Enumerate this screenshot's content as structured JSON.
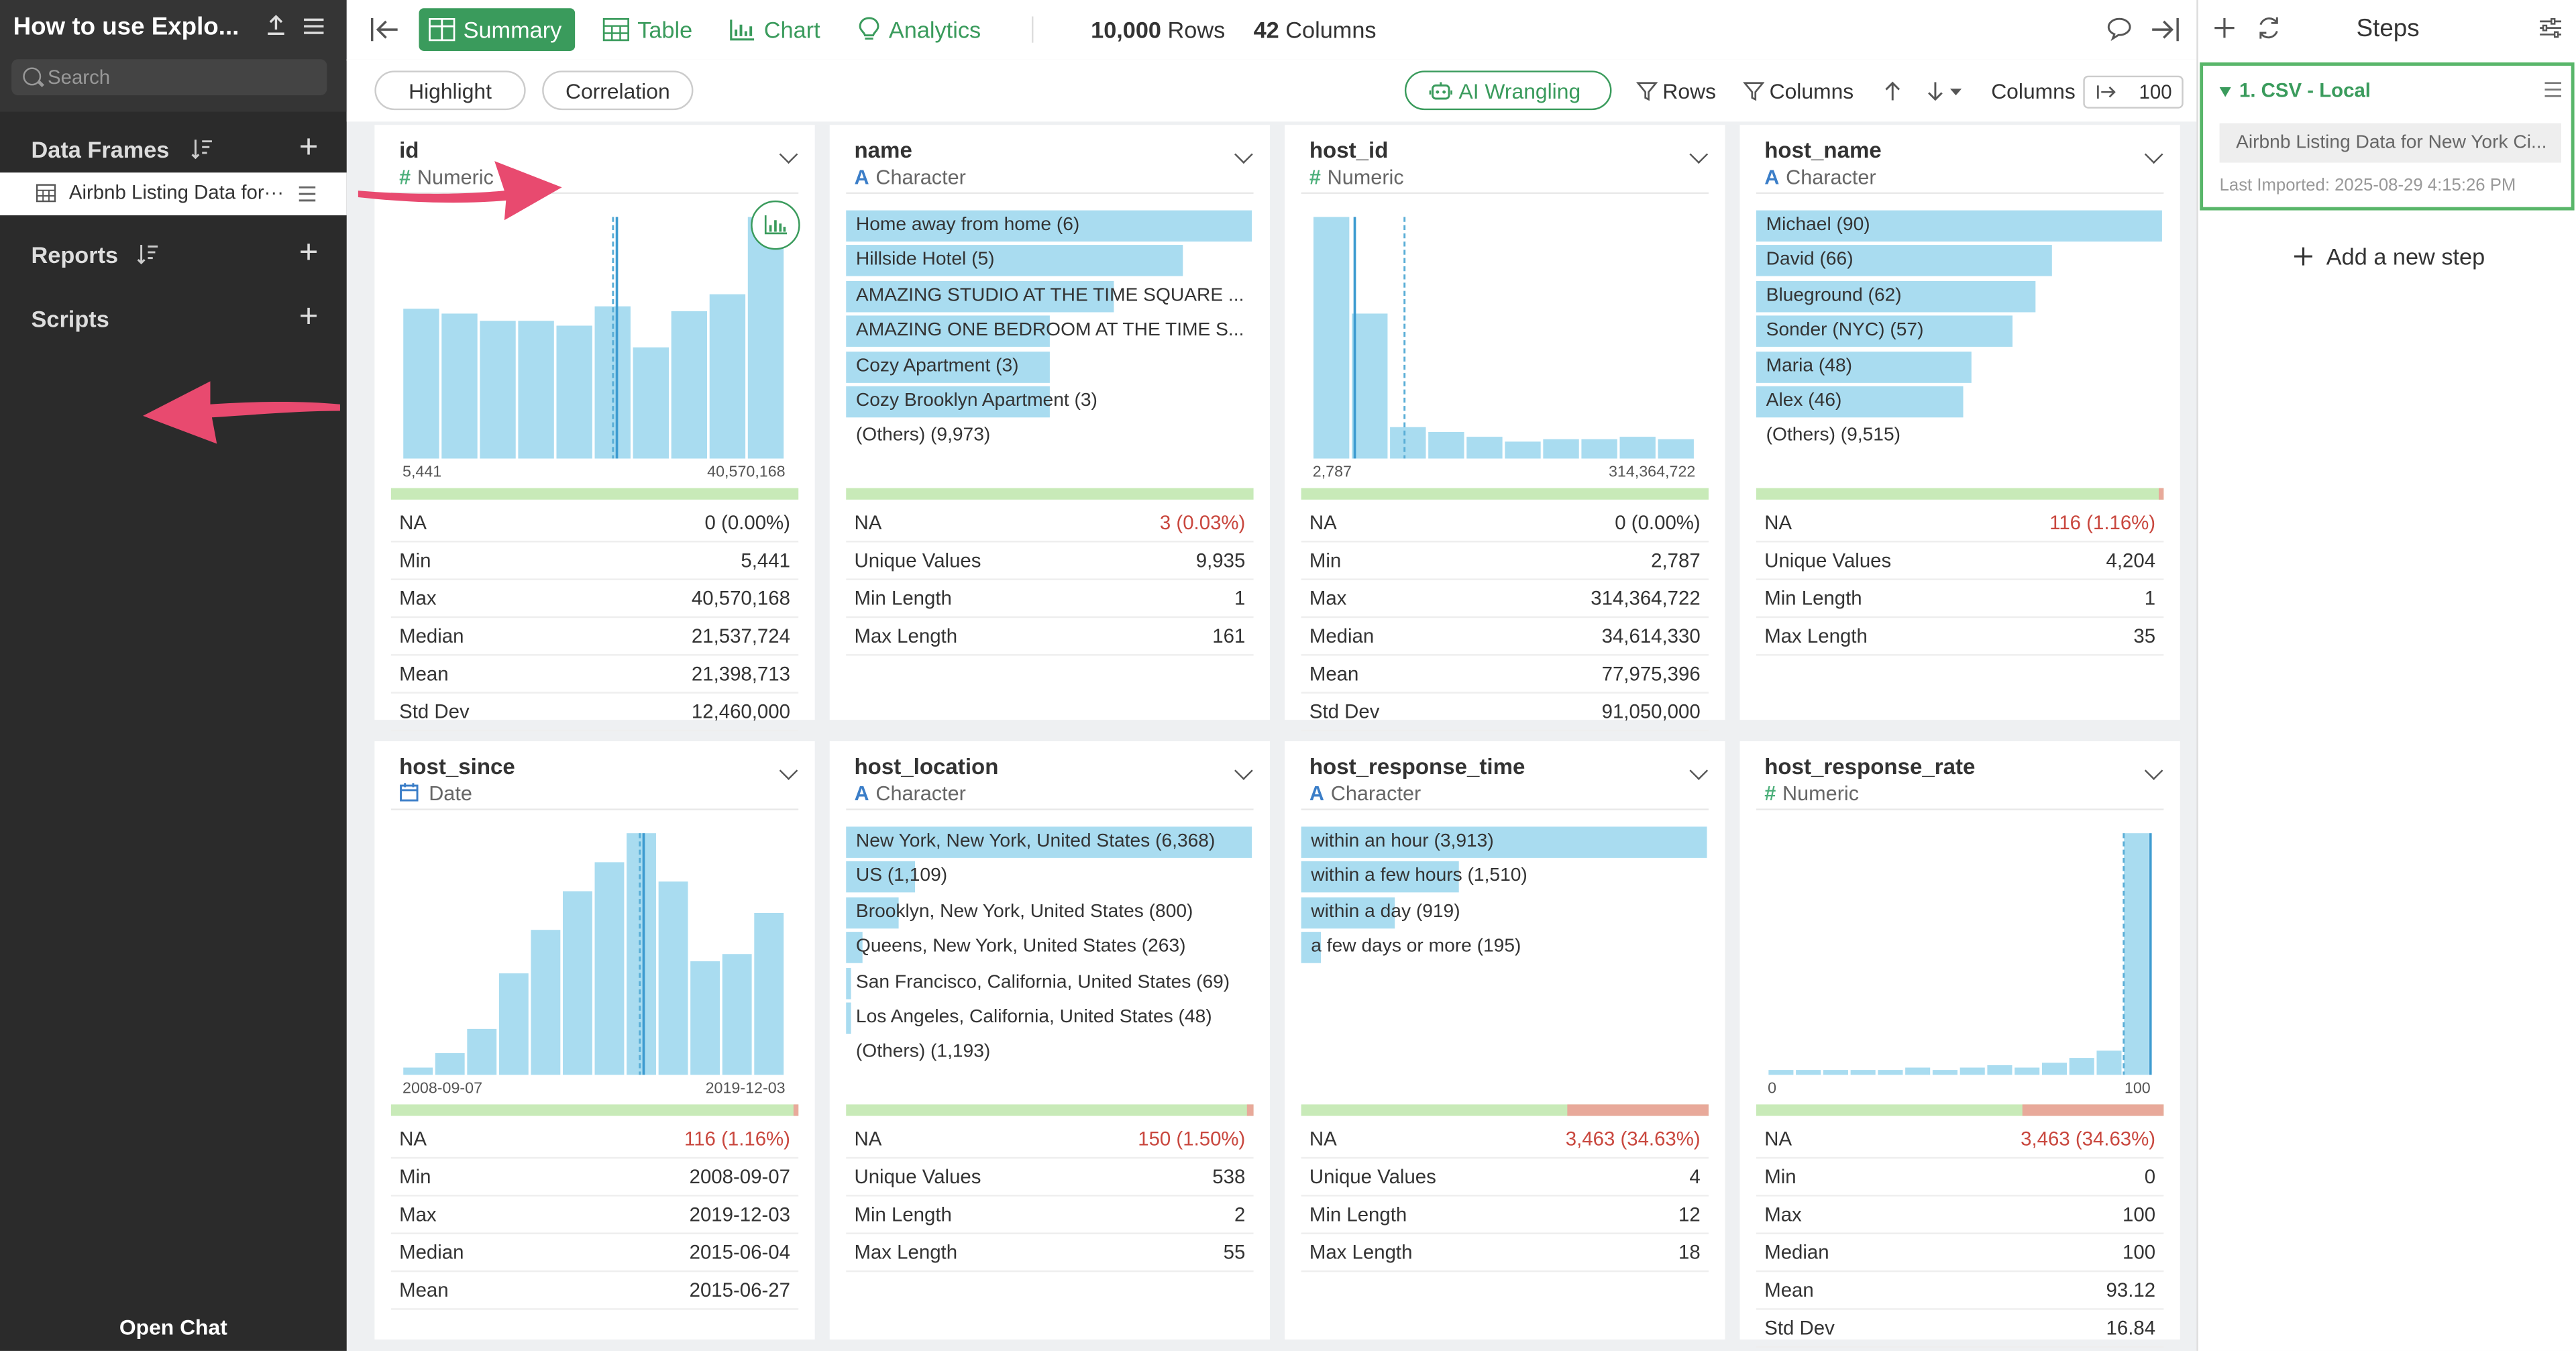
{
  "sidebar": {
    "project_title": "How to use Explo...",
    "search_placeholder": "Search",
    "data_frames_label": "Data Frames",
    "data_frame_item": "Airbnb Listing Data for···",
    "reports_label": "Reports",
    "scripts_label": "Scripts",
    "open_chat": "Open Chat"
  },
  "toolbar": {
    "summary": "Summary",
    "table": "Table",
    "chart": "Chart",
    "analytics": "Analytics",
    "rows_count": "10,000",
    "rows_label": "Rows",
    "columns_count": "42",
    "columns_label": "Columns"
  },
  "bar2": {
    "highlight": "Highlight",
    "correlation": "Correlation",
    "ai_wrangling": "AI Wrangling",
    "rows": "Rows",
    "columns": "Columns",
    "columns_label": "Columns",
    "columns_value": "100"
  },
  "cards": [
    {
      "title": "id",
      "type": "Numeric",
      "type_icon": "#",
      "kind": "numeric",
      "hist": [
        0.62,
        0.6,
        0.57,
        0.57,
        0.55,
        0.63,
        0.46,
        0.61,
        0.68,
        1.0
      ],
      "mean_pos": 0.55,
      "median_pos": 0.56,
      "axis_min": "5,441",
      "axis_max": "40,570,168",
      "na_frac": 0.0,
      "stats": [
        {
          "k": "NA",
          "v": "0 (0.00%)",
          "red": false
        },
        {
          "k": "Min",
          "v": "5,441"
        },
        {
          "k": "Max",
          "v": "40,570,168"
        },
        {
          "k": "Median",
          "v": "21,537,724"
        },
        {
          "k": "Mean",
          "v": "21,398,713"
        },
        {
          "k": "Std Dev",
          "v": "12,460,000"
        }
      ]
    },
    {
      "title": "name",
      "type": "Character",
      "type_icon": "A",
      "kind": "char",
      "bars": [
        {
          "label": "Home away from home (6)",
          "frac": 1.0
        },
        {
          "label": "Hillside Hotel (5)",
          "frac": 0.83
        },
        {
          "label": "AMAZING STUDIO AT THE TIME SQUARE ...",
          "frac": 0.66
        },
        {
          "label": "AMAZING ONE BEDROOM AT THE TIME S...",
          "frac": 0.5
        },
        {
          "label": "Cozy Apartment (3)",
          "frac": 0.5
        },
        {
          "label": "Cozy Brooklyn Apartment (3)",
          "frac": 0.5
        },
        {
          "label": "(Others) (9,973)",
          "frac": 0
        }
      ],
      "na_frac": 0.0,
      "stats": [
        {
          "k": "NA",
          "v": "3 (0.03%)",
          "red": true
        },
        {
          "k": "Unique Values",
          "v": "9,935"
        },
        {
          "k": "Min Length",
          "v": "1"
        },
        {
          "k": "Max Length",
          "v": "161"
        }
      ]
    },
    {
      "title": "host_id",
      "type": "Numeric",
      "type_icon": "#",
      "kind": "numeric",
      "hist": [
        1.0,
        0.6,
        0.13,
        0.11,
        0.09,
        0.07,
        0.08,
        0.08,
        0.09,
        0.08
      ],
      "mean_pos": 0.24,
      "median_pos": 0.11,
      "axis_min": "2,787",
      "axis_max": "314,364,722",
      "na_frac": 0.0,
      "stats": [
        {
          "k": "NA",
          "v": "0 (0.00%)",
          "red": false
        },
        {
          "k": "Min",
          "v": "2,787"
        },
        {
          "k": "Max",
          "v": "314,364,722"
        },
        {
          "k": "Median",
          "v": "34,614,330"
        },
        {
          "k": "Mean",
          "v": "77,975,396"
        },
        {
          "k": "Std Dev",
          "v": "91,050,000"
        }
      ]
    },
    {
      "title": "host_name",
      "type": "Character",
      "type_icon": "A",
      "kind": "char",
      "bars": [
        {
          "label": "Michael (90)",
          "frac": 1.0
        },
        {
          "label": "David (66)",
          "frac": 0.73
        },
        {
          "label": "Blueground (62)",
          "frac": 0.69
        },
        {
          "label": "Sonder (NYC) (57)",
          "frac": 0.63
        },
        {
          "label": "Maria (48)",
          "frac": 0.53
        },
        {
          "label": "Alex (46)",
          "frac": 0.51
        },
        {
          "label": "(Others) (9,515)",
          "frac": 0
        }
      ],
      "na_frac": 0.0116,
      "stats": [
        {
          "k": "NA",
          "v": "116 (1.16%)",
          "red": true
        },
        {
          "k": "Unique Values",
          "v": "4,204"
        },
        {
          "k": "Min Length",
          "v": "1"
        },
        {
          "k": "Max Length",
          "v": "35"
        }
      ]
    },
    {
      "title": "host_since",
      "type": "Date",
      "type_icon": "cal",
      "kind": "numeric",
      "hist": [
        0.03,
        0.09,
        0.19,
        0.42,
        0.6,
        0.76,
        0.88,
        1.0,
        0.8,
        0.47,
        0.5,
        0.67
      ],
      "mean_pos": 0.62,
      "median_pos": 0.63,
      "axis_min": "2008-09-07",
      "axis_max": "2019-12-03",
      "na_frac": 0.0116,
      "stats": [
        {
          "k": "NA",
          "v": "116 (1.16%)",
          "red": true
        },
        {
          "k": "Min",
          "v": "2008-09-07"
        },
        {
          "k": "Max",
          "v": "2019-12-03"
        },
        {
          "k": "Median",
          "v": "2015-06-04"
        },
        {
          "k": "Mean",
          "v": "2015-06-27"
        }
      ]
    },
    {
      "title": "host_location",
      "type": "Character",
      "type_icon": "A",
      "kind": "char",
      "bars": [
        {
          "label": "New York, New York, United States (6,368)",
          "frac": 1.0
        },
        {
          "label": "US (1,109)",
          "frac": 0.17
        },
        {
          "label": "Brooklyn, New York, United States (800)",
          "frac": 0.13
        },
        {
          "label": "Queens, New York, United States (263)",
          "frac": 0.04
        },
        {
          "label": "San Francisco, California, United States (69)",
          "frac": 0.011
        },
        {
          "label": "Los Angeles, California, United States (48)",
          "frac": 0.008
        },
        {
          "label": "(Others) (1,193)",
          "frac": 0
        }
      ],
      "na_frac": 0.015,
      "stats": [
        {
          "k": "NA",
          "v": "150 (1.50%)",
          "red": true
        },
        {
          "k": "Unique Values",
          "v": "538"
        },
        {
          "k": "Min Length",
          "v": "2"
        },
        {
          "k": "Max Length",
          "v": "55"
        }
      ]
    },
    {
      "title": "host_response_time",
      "type": "Character",
      "type_icon": "A",
      "kind": "char",
      "bars": [
        {
          "label": "within an hour (3,913)",
          "frac": 1.0
        },
        {
          "label": "within a few hours (1,510)",
          "frac": 0.39
        },
        {
          "label": "within a day (919)",
          "frac": 0.23
        },
        {
          "label": "a few days or more (195)",
          "frac": 0.05
        }
      ],
      "na_frac": 0.3463,
      "stats": [
        {
          "k": "NA",
          "v": "3,463 (34.63%)",
          "red": true
        },
        {
          "k": "Unique Values",
          "v": "4"
        },
        {
          "k": "Min Length",
          "v": "12"
        },
        {
          "k": "Max Length",
          "v": "18"
        }
      ]
    },
    {
      "title": "host_response_rate",
      "type": "Numeric",
      "type_icon": "#",
      "kind": "numeric",
      "hist": [
        0.02,
        0.02,
        0.02,
        0.02,
        0.02,
        0.03,
        0.02,
        0.03,
        0.04,
        0.03,
        0.05,
        0.07,
        0.1,
        1.0
      ],
      "mean_pos": 0.93,
      "median_pos": 1.0,
      "axis_min": "0",
      "axis_max": "100",
      "na_frac": 0.3463,
      "stats": [
        {
          "k": "NA",
          "v": "3,463 (34.63%)",
          "red": true
        },
        {
          "k": "Min",
          "v": "0"
        },
        {
          "k": "Max",
          "v": "100"
        },
        {
          "k": "Median",
          "v": "100"
        },
        {
          "k": "Mean",
          "v": "93.12"
        },
        {
          "k": "Std Dev",
          "v": "16.84"
        }
      ]
    }
  ],
  "steps": {
    "title": "Steps",
    "step_name": "1. CSV - Local",
    "step_source": "Airbnb Listing Data for New York Ci...",
    "last_imported": "Last Imported: 2025-08-29 4:15:26 PM",
    "add_step": "Add a new step"
  },
  "colors": {
    "accent": "#3a9b5c",
    "bar": "#a9dcf0",
    "na_ok": "#c8eab8",
    "na_missing": "#e8a99a",
    "annotation_arrow": "#e84a6f"
  }
}
